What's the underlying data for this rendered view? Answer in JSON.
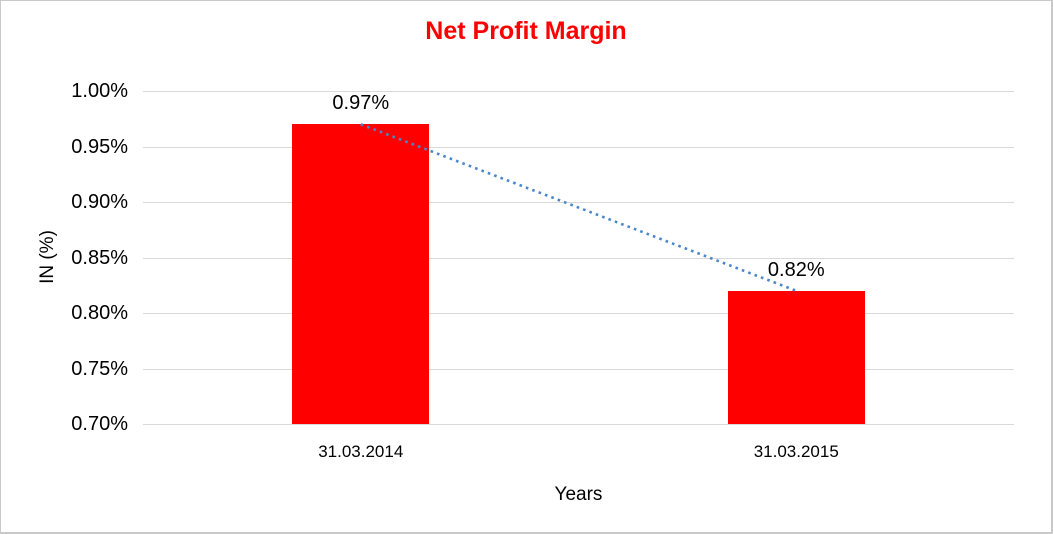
{
  "chart_data": {
    "type": "bar",
    "title": "Net Profit Margin",
    "xlabel": "Years",
    "ylabel": "IN (%)",
    "categories": [
      "31.03.2014",
      "31.03.2015"
    ],
    "values": [
      0.97,
      0.82
    ],
    "data_labels": [
      "0.97%",
      "0.82%"
    ],
    "ylim": [
      0.7,
      1.0
    ],
    "ytick_step": 0.05,
    "ytick_labels": [
      "1.00%",
      "0.95%",
      "0.90%",
      "0.85%",
      "0.80%",
      "0.75%",
      "0.70%"
    ],
    "grid": true,
    "legend": "none",
    "colors": {
      "bar": "#ff0000",
      "title": "#ff0000",
      "trendline": "#4a86c8",
      "gridline": "#d9d9d9",
      "text": "#000000"
    },
    "trendline": {
      "type": "linear",
      "style": "dotted",
      "from_category": "31.03.2014",
      "to_category": "31.03.2015"
    }
  }
}
